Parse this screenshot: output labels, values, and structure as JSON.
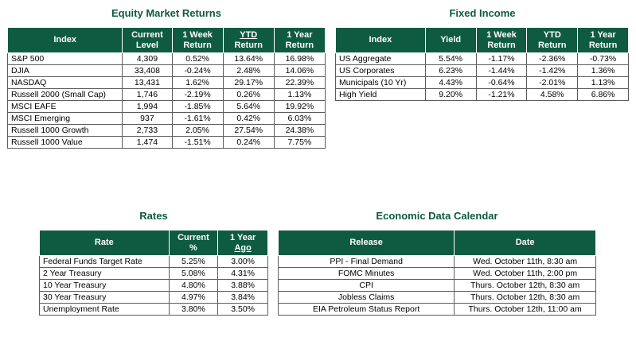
{
  "equity": {
    "title": "Equity Market Returns",
    "headers": [
      [
        "Index"
      ],
      [
        "Current",
        "Level"
      ],
      [
        "1 Week",
        "Return"
      ],
      [
        "YTD",
        "Return"
      ],
      [
        "1 Year",
        "Return"
      ]
    ],
    "rows": [
      [
        "S&P 500",
        "4,309",
        "0.52%",
        "13.64%",
        "16.98%"
      ],
      [
        "DJIA",
        "33,408",
        "-0.24%",
        "2.48%",
        "14.06%"
      ],
      [
        "NASDAQ",
        "13,431",
        "1.62%",
        "29.17%",
        "22.39%"
      ],
      [
        "Russell 2000 (Small Cap)",
        "1,746",
        "-2.19%",
        "0.26%",
        "1.13%"
      ],
      [
        "MSCI EAFE",
        "1,994",
        "-1.85%",
        "5.64%",
        "19.92%"
      ],
      [
        "MSCI Emerging",
        "937",
        "-1.61%",
        "0.42%",
        "6.03%"
      ],
      [
        "Russell 1000 Growth",
        "2,733",
        "2.05%",
        "27.54%",
        "24.38%"
      ],
      [
        "Russell 1000 Value",
        "1,474",
        "-1.51%",
        "0.24%",
        "7.75%"
      ]
    ]
  },
  "fixed_income": {
    "title": "Fixed Income",
    "headers": [
      [
        "Index"
      ],
      [
        "Yield"
      ],
      [
        "1 Week",
        "Return"
      ],
      [
        "YTD",
        "Return"
      ],
      [
        "1 Year",
        "Return"
      ]
    ],
    "rows": [
      [
        "US Aggregate",
        "5.54%",
        "-1.17%",
        "-2.36%",
        "-0.73%"
      ],
      [
        "US Corporates",
        "6.23%",
        "-1.44%",
        "-1.42%",
        "1.36%"
      ],
      [
        "Municipals (10 Yr)",
        "4.43%",
        "-0.64%",
        "-2.01%",
        "1.13%"
      ],
      [
        "High Yield",
        "9.20%",
        "-1.21%",
        "4.58%",
        "6.86%"
      ]
    ]
  },
  "rates": {
    "title": "Rates",
    "headers": [
      [
        "Rate"
      ],
      [
        "Current",
        "%"
      ],
      [
        "1 Year",
        "Ago"
      ]
    ],
    "rows": [
      [
        "Federal Funds Target Rate",
        "5.25%",
        "3.00%"
      ],
      [
        "2 Year Treasury",
        "5.08%",
        "4.31%"
      ],
      [
        "10 Year Treasury",
        "4.80%",
        "3.88%"
      ],
      [
        "30 Year Treasury",
        "4.97%",
        "3.84%"
      ],
      [
        "Unemployment Rate",
        "3.80%",
        "3.50%"
      ]
    ]
  },
  "calendar": {
    "title": "Economic Data Calendar",
    "headers": [
      [
        "Release"
      ],
      [
        "Date"
      ]
    ],
    "rows": [
      [
        "PPI - Final Demand",
        "Wed. October 11th, 8:30 am"
      ],
      [
        "FOMC Minutes",
        "Wed. October 11th, 2:00 pm"
      ],
      [
        "CPI",
        "Thurs. October 12th, 8:30 am"
      ],
      [
        "Jobless Claims",
        "Thurs. October 12th, 8:30 am"
      ],
      [
        "EIA Petroleum Status Report",
        "Thurs. October 12th, 11:00 am"
      ]
    ]
  }
}
